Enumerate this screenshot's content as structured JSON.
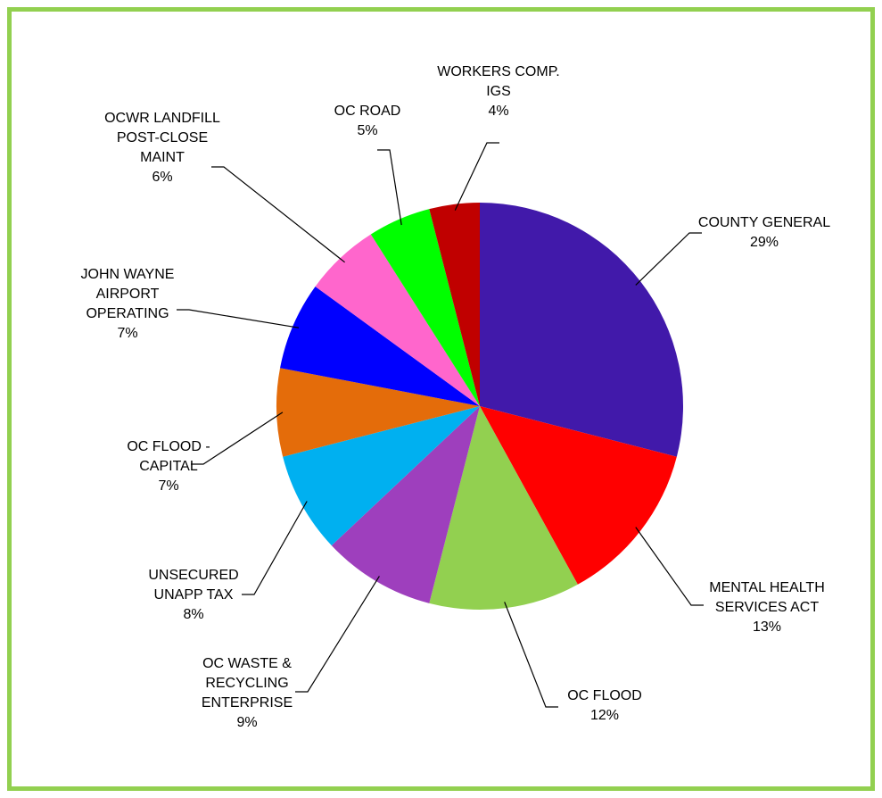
{
  "chart_data": {
    "type": "pie",
    "start_angle_deg": 0,
    "direction": "clockwise",
    "slices": [
      {
        "label": [
          "COUNTY GENERAL"
        ],
        "percent_label": "29%",
        "value": 29,
        "color": "#4119aa"
      },
      {
        "label": [
          "MENTAL HEALTH",
          "SERVICES ACT"
        ],
        "percent_label": "13%",
        "value": 13,
        "color": "#ff0000"
      },
      {
        "label": [
          "OC FLOOD"
        ],
        "percent_label": "12%",
        "value": 12,
        "color": "#92d050"
      },
      {
        "label": [
          "OC WASTE &",
          "RECYCLING",
          "ENTERPRISE"
        ],
        "percent_label": "9%",
        "value": 9,
        "color": "#9e3fbd"
      },
      {
        "label": [
          "UNSECURED",
          "UNAPP TAX"
        ],
        "percent_label": "8%",
        "value": 8,
        "color": "#00b0f0"
      },
      {
        "label": [
          "OC FLOOD -",
          "CAPITAL"
        ],
        "percent_label": "7%",
        "value": 7,
        "color": "#e46c0a"
      },
      {
        "label": [
          "JOHN WAYNE",
          "AIRPORT",
          "OPERATING"
        ],
        "percent_label": "7%",
        "value": 7,
        "color": "#0000ff"
      },
      {
        "label": [
          "OCWR LANDFILL",
          "POST-CLOSE",
          "MAINT"
        ],
        "percent_label": "6%",
        "value": 6,
        "color": "#ff66cc"
      },
      {
        "label": [
          "OC ROAD"
        ],
        "percent_label": "5%",
        "value": 5,
        "color": "#00ff00"
      },
      {
        "label": [
          "WORKERS COMP.",
          "IGS"
        ],
        "percent_label": "4%",
        "value": 4,
        "color": "#c00000"
      }
    ],
    "legend": "none"
  }
}
